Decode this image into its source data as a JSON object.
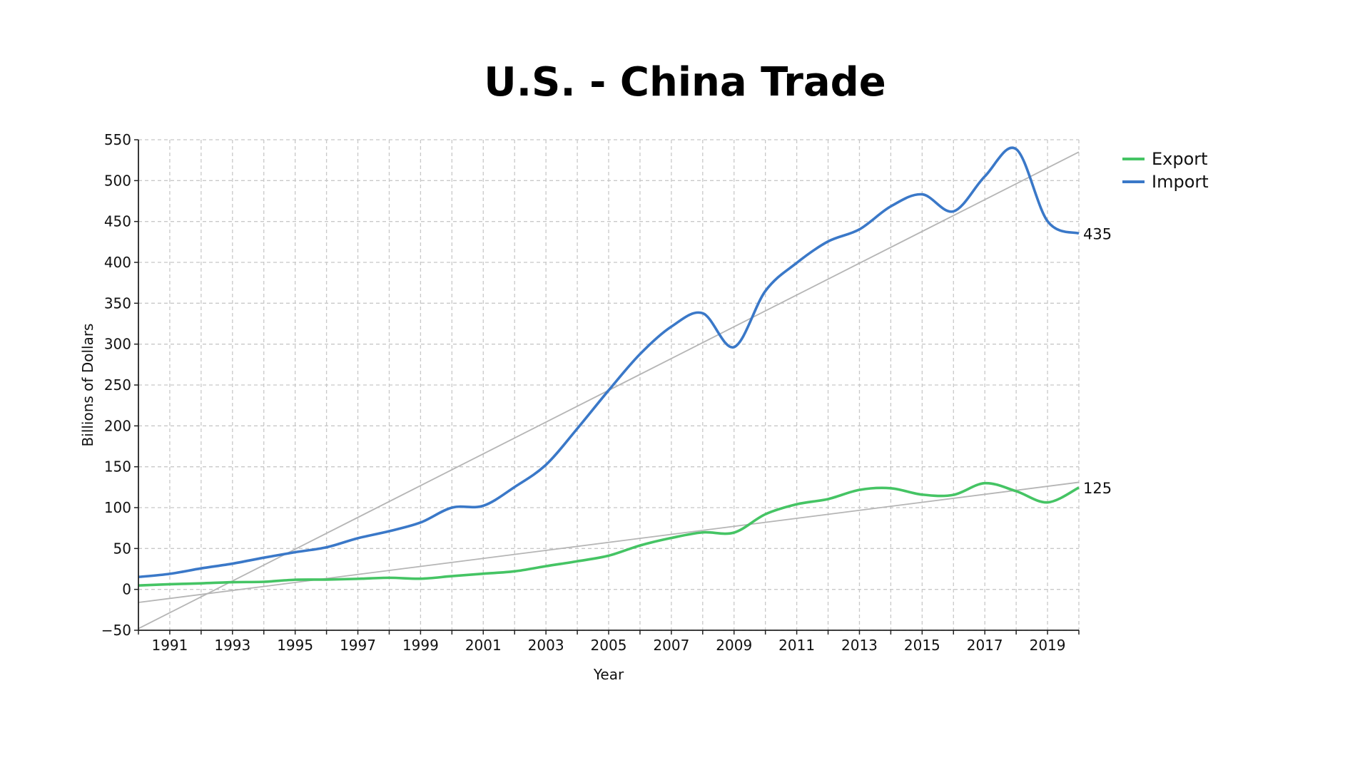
{
  "chart_data": {
    "type": "line",
    "title": "U.S. - China Trade",
    "xlabel": "Year",
    "ylabel": "Billions of Dollars",
    "xlim": [
      1990,
      2020
    ],
    "ylim": [
      -50,
      550
    ],
    "yticks": [
      -50,
      0,
      50,
      100,
      150,
      200,
      250,
      300,
      350,
      400,
      450,
      500,
      550
    ],
    "xticks": [
      1991,
      1993,
      1995,
      1997,
      1999,
      2001,
      2003,
      2005,
      2007,
      2009,
      2011,
      2013,
      2015,
      2017,
      2019
    ],
    "grid": true,
    "legend_position": "right",
    "x": [
      1990,
      1991,
      1992,
      1993,
      1994,
      1995,
      1996,
      1997,
      1998,
      1999,
      2000,
      2001,
      2002,
      2003,
      2004,
      2005,
      2006,
      2007,
      2008,
      2009,
      2010,
      2011,
      2012,
      2013,
      2014,
      2015,
      2016,
      2017,
      2018,
      2019,
      2020
    ],
    "series": [
      {
        "name": "Export",
        "color": "#45c464",
        "values": [
          4.8,
          6.3,
          7.4,
          8.8,
          9.3,
          11.8,
          12,
          12.9,
          14.2,
          13.1,
          16.2,
          19.2,
          22.1,
          28.4,
          34.4,
          41.2,
          53.7,
          62.9,
          69.7,
          69.5,
          91.9,
          104.1,
          110.5,
          121.7,
          123.7,
          115.9,
          115.6,
          129.9,
          120.1,
          106.4,
          124.5
        ],
        "trend": [
          -16,
          131
        ],
        "end_label": "125"
      },
      {
        "name": "Import",
        "color": "#3a78c8",
        "values": [
          15.2,
          19,
          25.7,
          31.5,
          38.8,
          45.5,
          51.5,
          62.6,
          71.2,
          81.8,
          100,
          102.3,
          125.2,
          152.4,
          196.7,
          243.5,
          287.8,
          321.4,
          337.8,
          296.4,
          365,
          399.4,
          425.6,
          440.4,
          468.5,
          483.2,
          462.4,
          505.2,
          538.5,
          450.4,
          435.4
        ],
        "trend": [
          -48,
          535
        ],
        "end_label": "435"
      }
    ],
    "trend_color": "#b5b5b5"
  }
}
